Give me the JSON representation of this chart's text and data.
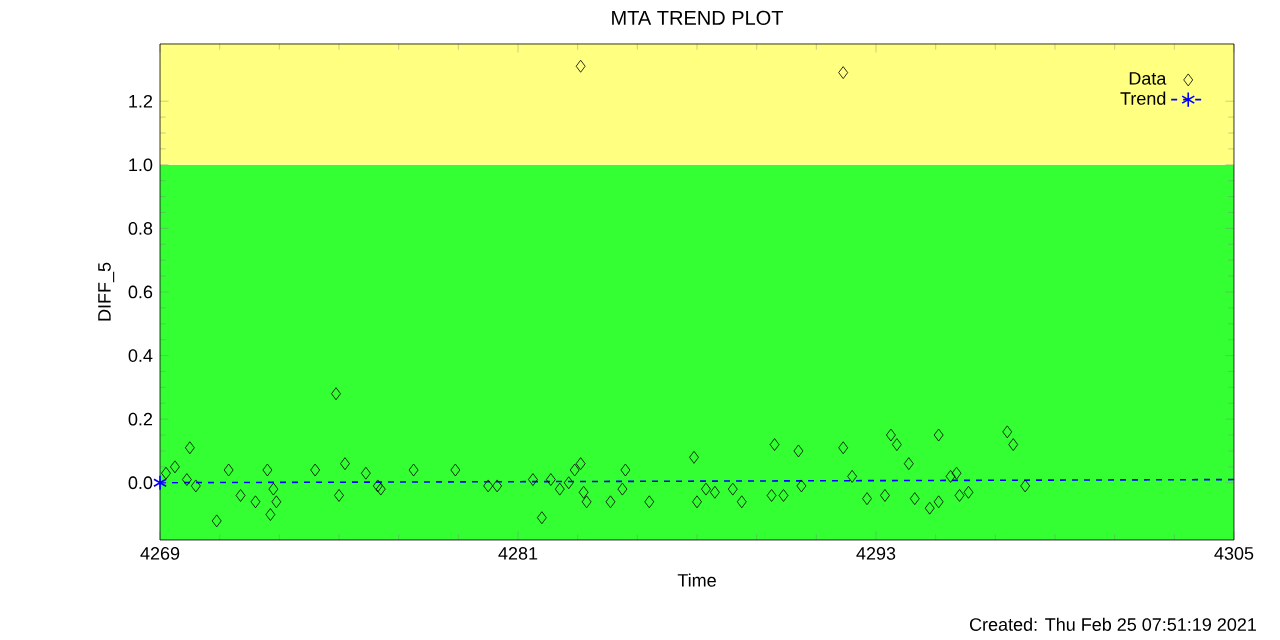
{
  "chart_data": {
    "type": "scatter",
    "title": "MTA TREND PLOT",
    "xlabel": "Time",
    "ylabel": "DIFF_5",
    "annotations": [
      "Created: Thu Feb 25 07:51:19 2021"
    ],
    "xlim": [
      4269,
      4305
    ],
    "xticks": [
      4269,
      4281,
      4293,
      4305
    ],
    "ylim": [
      -0.18,
      1.38
    ],
    "yticks": [
      {
        "value": 0,
        "label": "0.0"
      },
      {
        "value": 0.2,
        "label": "0.2"
      },
      {
        "value": 0.4,
        "label": "0.4"
      },
      {
        "value": 0.6,
        "label": "0.6"
      },
      {
        "value": 0.8,
        "label": "0.8"
      },
      {
        "value": 1.0,
        "label": "1.0"
      },
      {
        "value": 1.2,
        "label": "1.2"
      }
    ],
    "bands": [
      {
        "axis": "y",
        "from": -0.18,
        "to": 1.0,
        "color": "#33ff33"
      },
      {
        "axis": "y",
        "from": 1.0,
        "to": 1.38,
        "color": "#ffff80"
      }
    ],
    "legend": "top right",
    "series": [
      {
        "name": "Data",
        "marker": "diamond",
        "color": "#000000",
        "x": [
          4269.2,
          4269.5,
          4270.0,
          4269.9,
          4270.2,
          4270.9,
          4271.3,
          4271.7,
          4272.2,
          4272.6,
          4272.7,
          4272.8,
          4272.9,
          4274.2,
          4274.9,
          4275.0,
          4275.2,
          4275.9,
          4276.3,
          4276.4,
          4277.5,
          4278.9,
          4280.0,
          4280.3,
          4281.5,
          4281.8,
          4282.1,
          4282.4,
          4282.7,
          4282.9,
          4283.1,
          4283.2,
          4283.3,
          4283.1,
          4284.1,
          4284.5,
          4284.6,
          4285.4,
          4286.9,
          4287.0,
          4287.3,
          4287.6,
          4288.2,
          4288.5,
          4289.5,
          4289.6,
          4289.9,
          4290.4,
          4290.5,
          4291.9,
          4291.9,
          4292.2,
          4292.7,
          4293.3,
          4293.5,
          4293.7,
          4294.1,
          4294.3,
          4294.8,
          4295.1,
          4295.1,
          4295.5,
          4295.7,
          4295.8,
          4296.1,
          4297.4,
          4297.6,
          4298.0
        ],
        "values": [
          0.03,
          0.05,
          0.11,
          0.01,
          -0.01,
          -0.12,
          0.04,
          -0.04,
          -0.06,
          0.04,
          -0.1,
          -0.02,
          -0.06,
          0.04,
          0.28,
          -0.04,
          0.06,
          0.03,
          -0.01,
          -0.02,
          0.04,
          0.04,
          -0.01,
          -0.01,
          0.01,
          -0.11,
          0.01,
          -0.02,
          0.0,
          0.04,
          0.06,
          -0.03,
          -0.06,
          1.31,
          -0.06,
          -0.02,
          0.04,
          -0.06,
          0.08,
          -0.06,
          -0.02,
          -0.03,
          -0.02,
          -0.06,
          -0.04,
          0.12,
          -0.04,
          0.1,
          -0.01,
          1.29,
          0.11,
          0.02,
          -0.05,
          -0.04,
          0.15,
          0.12,
          0.06,
          -0.05,
          -0.08,
          -0.06,
          0.15,
          0.02,
          0.03,
          -0.04,
          -0.03,
          0.16,
          0.12,
          -0.01
        ]
      },
      {
        "name": "Trend",
        "type": "line",
        "marker": "cross",
        "line_style": "dashed",
        "color": "#0000ff",
        "x": [
          4269,
          4305
        ],
        "values": [
          0.0,
          0.01
        ]
      }
    ]
  }
}
